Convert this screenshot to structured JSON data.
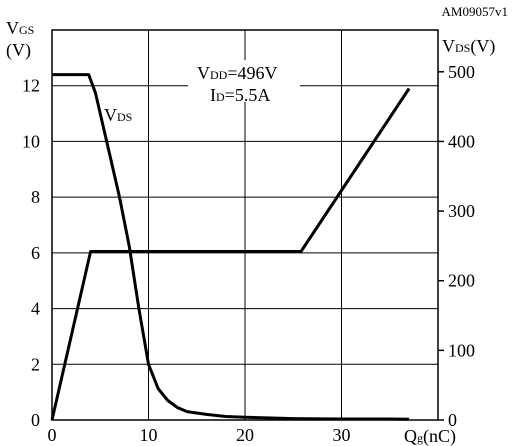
{
  "chart_data": {
    "type": "line",
    "code": "AM09057v1",
    "left_axis": {
      "label_main": "V",
      "label_sub": "GS",
      "unit": "(V)",
      "ticks": [
        0,
        2,
        4,
        6,
        8,
        10,
        12
      ],
      "range": [
        0,
        14
      ]
    },
    "right_axis": {
      "label_main": "V",
      "label_sub": "DS",
      "unit": "(V)",
      "ticks": [
        0,
        100,
        200,
        300,
        400,
        500
      ],
      "range": [
        0,
        560
      ]
    },
    "x_axis": {
      "label_main": "Q",
      "label_sub": "g",
      "unit": "(nC)",
      "ticks": [
        0,
        10,
        20,
        30
      ],
      "range": [
        0,
        40
      ]
    },
    "grid": true,
    "annotation": {
      "line1_main": "V",
      "line1_sub": "DD",
      "line1_rest": "=496V",
      "line2_main": "I",
      "line2_sub": "D",
      "line2_rest": "=5.5A"
    },
    "series": [
      {
        "name_main": "V",
        "name_sub": "DS",
        "axis": "right",
        "points": [
          [
            0,
            496
          ],
          [
            3.8,
            496
          ],
          [
            4.5,
            470
          ],
          [
            6,
            380
          ],
          [
            7,
            320
          ],
          [
            8,
            250
          ],
          [
            9,
            160
          ],
          [
            10,
            80
          ],
          [
            11,
            45
          ],
          [
            12,
            28
          ],
          [
            13,
            18
          ],
          [
            14,
            12
          ],
          [
            16,
            8
          ],
          [
            18,
            5
          ],
          [
            20,
            4
          ],
          [
            25,
            2
          ],
          [
            30,
            1.5
          ],
          [
            35,
            1.5
          ],
          [
            37,
            1
          ]
        ]
      },
      {
        "axis": "left",
        "points": [
          [
            0,
            0
          ],
          [
            4,
            6.05
          ],
          [
            25.8,
            6.05
          ],
          [
            37,
            11.9
          ]
        ]
      }
    ]
  }
}
